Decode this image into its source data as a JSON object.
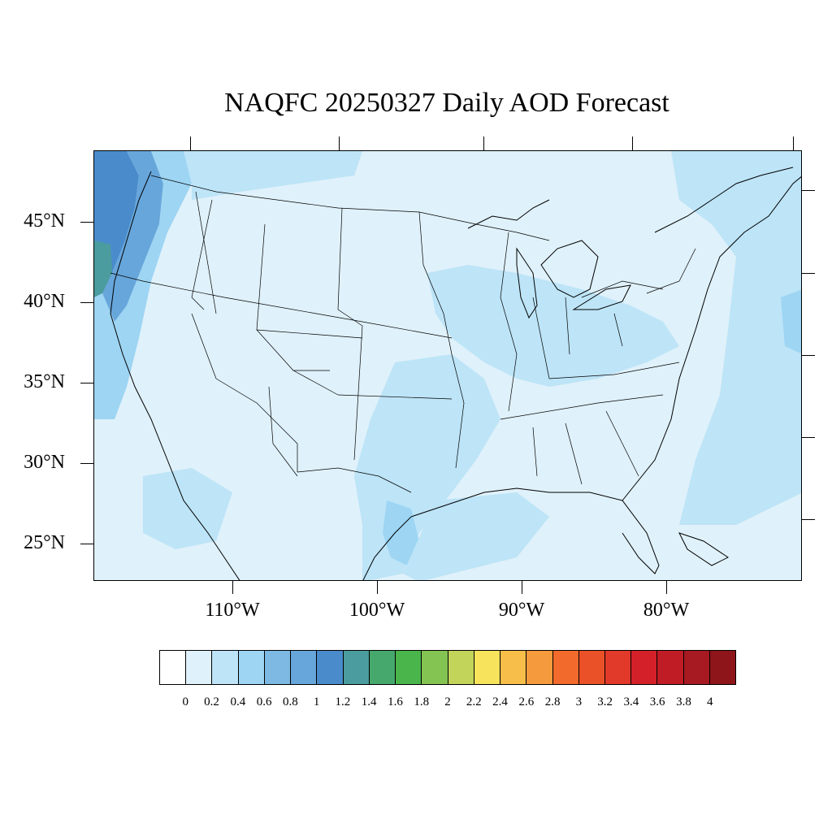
{
  "title": "NAQFC 20250327 Daily AOD Forecast",
  "map": {
    "projection": "lambert-conformal",
    "region": "Contiguous United States",
    "variable": "Aerosol Optical Depth",
    "lat_labels": [
      "45°N",
      "40°N",
      "35°N",
      "30°N",
      "25°N"
    ],
    "lon_labels": [
      "110°W",
      "100°W",
      "90°W",
      "80°W"
    ],
    "background_color": "#dff1fa",
    "features": [
      {
        "name": "Pacific Northwest coast high AOD",
        "aod": 1.0
      },
      {
        "name": "Oregon coast",
        "aod": 1.2
      },
      {
        "name": "Upper Midwest band",
        "aod": 0.4
      },
      {
        "name": "Southern Plains / Texas",
        "aod": 0.4
      },
      {
        "name": "South Texas coast",
        "aod": 0.6
      },
      {
        "name": "Atlantic offshore",
        "aod": 0.4
      },
      {
        "name": "Western Interior",
        "aod": 0.2
      }
    ]
  },
  "legend": {
    "labels": [
      "0",
      "0.2",
      "0.4",
      "0.6",
      "0.8",
      "1",
      "1.2",
      "1.4",
      "1.6",
      "1.8",
      "2",
      "2.2",
      "2.4",
      "2.6",
      "2.8",
      "3",
      "3.2",
      "3.4",
      "3.6",
      "3.8",
      "4"
    ],
    "colors": [
      "#ffffff",
      "#dff1fa",
      "#bde4f7",
      "#9dd5f3",
      "#7db9e3",
      "#67a6db",
      "#4a8ccb",
      "#4b9c9e",
      "#46a86d",
      "#4ab54a",
      "#84c452",
      "#c2d55a",
      "#f7e45c",
      "#f8be4a",
      "#f59a3d",
      "#f26a2c",
      "#ea5128",
      "#e1392a",
      "#d42129",
      "#c01c25",
      "#a71a21",
      "#8e1519"
    ]
  }
}
